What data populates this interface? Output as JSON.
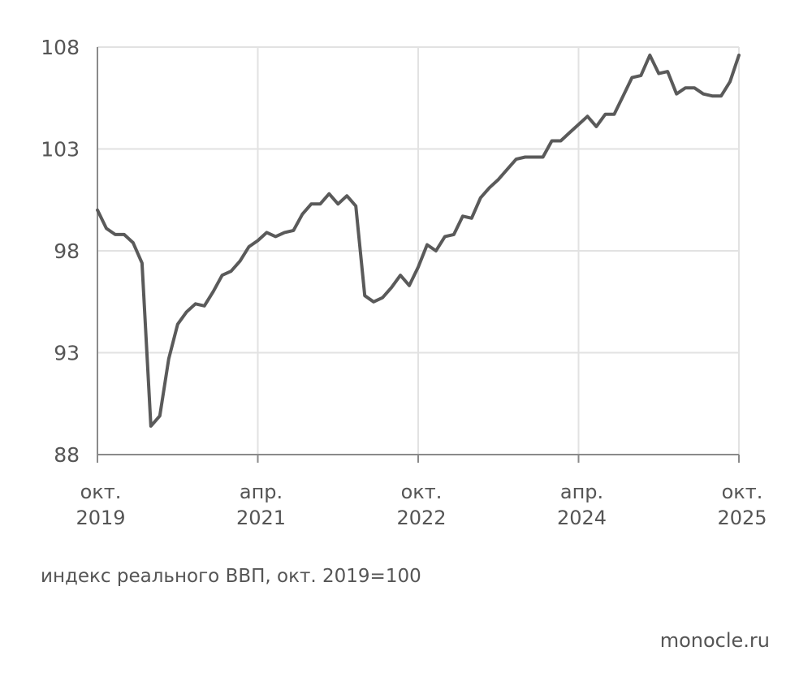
{
  "caption": "индекс реального ВВП, окт. 2019=100",
  "source": "monocle.ru",
  "colors": {
    "line": "#5a5a5a",
    "grid": "#e2e2e2",
    "axis": "#8a8a8a",
    "text": "#555555"
  },
  "chart_data": {
    "type": "line",
    "title": "",
    "xlabel": "",
    "ylabel": "",
    "ylim": [
      88,
      108
    ],
    "yticks": [
      108,
      103,
      98,
      93,
      88
    ],
    "grid": true,
    "xticks": [
      {
        "month": "окт.",
        "year": "2019"
      },
      {
        "month": "апр.",
        "year": "2021"
      },
      {
        "month": "окт.",
        "year": "2022"
      },
      {
        "month": "апр.",
        "year": "2024"
      },
      {
        "month": "окт.",
        "year": "2025"
      }
    ],
    "x": [
      "2019-10",
      "2019-11",
      "2019-12",
      "2020-01",
      "2020-02",
      "2020-03",
      "2020-04",
      "2020-05",
      "2020-06",
      "2020-07",
      "2020-08",
      "2020-09",
      "2020-10",
      "2020-11",
      "2020-12",
      "2021-01",
      "2021-02",
      "2021-03",
      "2021-04",
      "2021-05",
      "2021-06",
      "2021-07",
      "2021-08",
      "2021-09",
      "2021-10",
      "2021-11",
      "2021-12",
      "2022-01",
      "2022-02",
      "2022-03",
      "2022-04",
      "2022-05",
      "2022-06",
      "2022-07",
      "2022-08",
      "2022-09",
      "2022-10",
      "2022-11",
      "2022-12",
      "2023-01",
      "2023-02",
      "2023-03",
      "2023-04",
      "2023-05",
      "2023-06",
      "2023-07",
      "2023-08",
      "2023-09",
      "2023-10",
      "2023-11",
      "2023-12",
      "2024-01",
      "2024-02",
      "2024-03",
      "2024-04",
      "2024-05",
      "2024-06",
      "2024-07",
      "2024-08",
      "2024-09",
      "2024-10",
      "2024-11",
      "2024-12",
      "2025-01",
      "2025-02",
      "2025-03",
      "2025-04",
      "2025-05",
      "2025-06",
      "2025-07",
      "2025-08",
      "2025-09",
      "2025-10"
    ],
    "series": [
      {
        "values": [
          100.0,
          99.1,
          98.8,
          98.8,
          98.4,
          97.4,
          89.4,
          89.9,
          92.7,
          94.4,
          95.0,
          95.4,
          95.3,
          96.0,
          96.8,
          97.0,
          97.5,
          98.2,
          98.5,
          98.9,
          98.7,
          98.9,
          99.0,
          99.8,
          100.3,
          100.3,
          100.8,
          100.3,
          100.7,
          100.2,
          95.8,
          95.5,
          95.7,
          96.2,
          96.8,
          96.3,
          97.2,
          98.3,
          98.0,
          98.7,
          98.8,
          99.7,
          99.6,
          100.6,
          101.1,
          101.5,
          102.0,
          102.5,
          102.6,
          102.6,
          102.6,
          103.4,
          103.4,
          103.8,
          104.2,
          104.6,
          104.1,
          104.7,
          104.7,
          105.6,
          106.5,
          106.6,
          107.6,
          106.7,
          106.8,
          105.7,
          106.0,
          106.0,
          105.7,
          105.6,
          105.6,
          106.3,
          107.6
        ]
      }
    ]
  }
}
